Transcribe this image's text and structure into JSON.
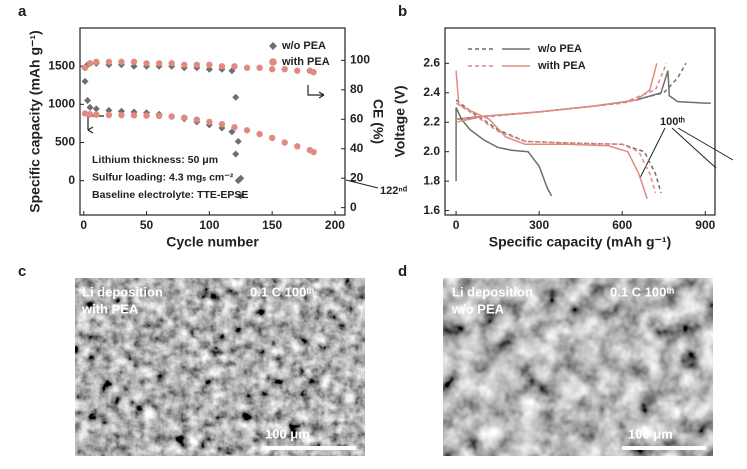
{
  "chart_data": [
    {
      "type": "scatter",
      "panel": "a",
      "xlabel": "Cycle number",
      "ylabel": "Specific capacity (mAh g⁻¹)",
      "y2label": "CE (%)",
      "xlim": [
        -3,
        208
      ],
      "xticks": [
        0,
        50,
        100,
        150,
        200
      ],
      "ylim": [
        -450,
        2000
      ],
      "yticks": [
        0,
        500,
        1000,
        1500
      ],
      "y2lim": [
        -5,
        122
      ],
      "y2ticks": [
        0,
        20,
        40,
        60,
        80,
        100
      ],
      "annotations": [
        "Lithium thickness: 50 μm",
        "Sulfur loading: 4.3 mgₛ cm⁻²",
        "Baseline electrolyte: TTE-EPSE"
      ],
      "series": [
        {
          "name": "w/o PEA",
          "color": "#6e6e6e",
          "marker": "diamond",
          "x": [
            1,
            3,
            5,
            10,
            20,
            30,
            40,
            50,
            60,
            70,
            80,
            90,
            100,
            110,
            118,
            121,
            123,
            125
          ],
          "values": [
            1300,
            1050,
            960,
            940,
            920,
            910,
            900,
            890,
            870,
            840,
            810,
            770,
            730,
            690,
            640,
            350,
            0,
            -200
          ]
        },
        {
          "name": "with PEA",
          "color": "#e08a80",
          "marker": "circle",
          "x": [
            1,
            5,
            10,
            20,
            30,
            40,
            50,
            60,
            70,
            80,
            90,
            100,
            110,
            120,
            130,
            140,
            150,
            160,
            170,
            180,
            183
          ],
          "values": [
            880,
            870,
            865,
            860,
            858,
            856,
            852,
            848,
            840,
            825,
            800,
            770,
            740,
            700,
            660,
            610,
            560,
            500,
            450,
            400,
            375
          ]
        },
        {
          "name": "w/o PEA",
          "color": "#6e6e6e",
          "marker": "diamond",
          "axis": "y2",
          "x": [
            1,
            3,
            5,
            10,
            20,
            30,
            40,
            50,
            60,
            70,
            80,
            90,
            100,
            110,
            118,
            121,
            123,
            125
          ],
          "values": [
            95,
            97,
            98,
            98,
            97,
            97,
            96,
            96,
            96,
            96,
            95,
            95,
            94,
            94,
            93,
            75,
            45,
            20
          ]
        },
        {
          "name": "with PEA",
          "color": "#e08a80",
          "marker": "circle",
          "axis": "y2",
          "x": [
            1,
            5,
            10,
            20,
            30,
            40,
            50,
            60,
            70,
            80,
            90,
            100,
            110,
            120,
            130,
            140,
            150,
            160,
            170,
            180,
            183
          ],
          "values": [
            95,
            98,
            99,
            99,
            99,
            99,
            98,
            98,
            98,
            97,
            97,
            97,
            96,
            96,
            95,
            95,
            94,
            94,
            93,
            93,
            92
          ]
        }
      ]
    },
    {
      "type": "line",
      "panel": "b",
      "xlabel": "Specific capacity (mAh g⁻¹)",
      "ylabel": "Voltage (V)",
      "xlim": [
        -40,
        935
      ],
      "xticks": [
        0,
        300,
        600,
        900
      ],
      "ylim": [
        1.57,
        2.84
      ],
      "yticks": [
        1.6,
        1.8,
        {
          "value": 2,
          "label": "2.0"
        },
        2.2,
        2.4,
        2.6
      ],
      "annotations": [
        "100ᵗʰ",
        "122ⁿᵈ"
      ],
      "series": [
        {
          "name": "w/o PEA",
          "color": "#6e6e6e",
          "dashed": true,
          "x": [
            0,
            50,
            150,
            250,
            400,
            600,
            680,
            720,
            740,
            null,
            0,
            300,
            600,
            750,
            800,
            830
          ],
          "values": [
            2.35,
            2.28,
            2.15,
            2.07,
            2.06,
            2.05,
            2.0,
            1.85,
            1.72,
            null,
            2.22,
            2.27,
            2.33,
            2.4,
            2.5,
            2.6
          ]
        },
        {
          "name": "w/o PEA",
          "color": "#6e6e6e",
          "x": [
            0,
            0,
            20,
            50,
            100,
            150,
            200,
            260,
            300,
            330,
            345,
            null,
            0,
            100,
            300,
            500,
            650,
            740,
            765,
            770,
            800,
            900,
            920
          ],
          "values": [
            1.8,
            2.3,
            2.22,
            2.15,
            2.08,
            2.03,
            2.01,
            2.0,
            1.9,
            1.75,
            1.7,
            null,
            2.22,
            2.24,
            2.27,
            2.31,
            2.35,
            2.4,
            2.55,
            2.38,
            2.34,
            2.33,
            2.33
          ]
        },
        {
          "name": "with PEA",
          "color": "#e08a80",
          "dashed": true,
          "x": [
            0,
            50,
            150,
            250,
            400,
            600,
            660,
            700,
            720,
            null,
            0,
            300,
            600,
            720,
            760
          ],
          "values": [
            2.33,
            2.27,
            2.14,
            2.07,
            2.06,
            2.05,
            2.0,
            1.85,
            1.72,
            null,
            2.22,
            2.27,
            2.33,
            2.42,
            2.6
          ]
        },
        {
          "name": "with PEA",
          "color": "#e08a80",
          "x": [
            0,
            10,
            50,
            120,
            180,
            250,
            400,
            550,
            620,
            660,
            690,
            null,
            0,
            100,
            300,
            500,
            650,
            700,
            725
          ],
          "values": [
            2.55,
            2.32,
            2.28,
            2.22,
            2.1,
            2.05,
            2.05,
            2.04,
            2.0,
            1.85,
            1.68,
            null,
            2.2,
            2.24,
            2.27,
            2.31,
            2.35,
            2.42,
            2.6
          ]
        }
      ]
    }
  ],
  "images": [
    {
      "panel": "c",
      "title": "Li deposition",
      "subtitle": "with PEA",
      "condition": "0.1 C 100ᵗʰ",
      "scale": "100 μm"
    },
    {
      "panel": "d",
      "title": "Li deposition",
      "subtitle": "w/o PEA",
      "condition": "0.1 C 100ᵗʰ",
      "scale": "100 μm"
    }
  ]
}
